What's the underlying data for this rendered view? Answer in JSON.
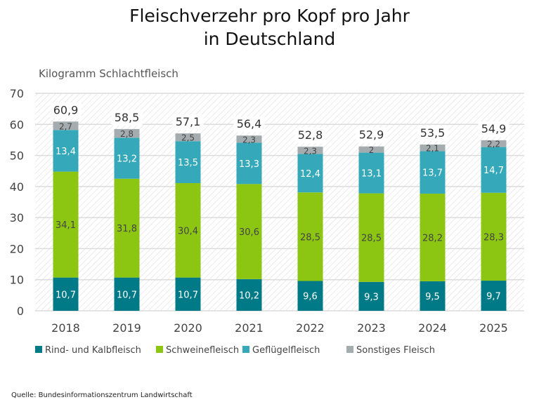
{
  "chart_data": {
    "type": "bar",
    "stacked": true,
    "title": "Fleischverzehr pro Kopf pro Jahr in Deutschland",
    "title_lines": [
      "Fleischverzehr pro Kopf pro Jahr",
      "in Deutschland"
    ],
    "ylabel": "Kilogramm Schlachtfleisch",
    "ylim": [
      0,
      70
    ],
    "yticks": [
      0,
      10,
      20,
      30,
      40,
      50,
      60,
      70
    ],
    "grid": true,
    "legend_position": "bottom",
    "categories": [
      "2018",
      "2019",
      "2020",
      "2021",
      "2022",
      "2023",
      "2024",
      "2025"
    ],
    "series": [
      {
        "name": "Rind- und Kalbfleisch",
        "color": "#007a87",
        "label_color": "#ffffff",
        "values": [
          10.7,
          10.7,
          10.7,
          10.2,
          9.6,
          9.3,
          9.5,
          9.7
        ],
        "labels": [
          "10,7",
          "10,7",
          "10,7",
          "10,2",
          "9,6",
          "9,3",
          "9,5",
          "9,7"
        ]
      },
      {
        "name": "Schweinefleisch",
        "color": "#8dc612",
        "label_color": "#444444",
        "values": [
          34.1,
          31.8,
          30.4,
          30.6,
          28.5,
          28.5,
          28.2,
          28.3
        ],
        "labels": [
          "34,1",
          "31,8",
          "30,4",
          "30,6",
          "28,5",
          "28,5",
          "28,2",
          "28,3"
        ]
      },
      {
        "name": "Geflügelfleisch",
        "color": "#35a9b9",
        "label_color": "#ffffff",
        "values": [
          13.4,
          13.2,
          13.5,
          13.3,
          12.4,
          13.1,
          13.7,
          14.7
        ],
        "labels": [
          "13,4",
          "13,2",
          "13,5",
          "13,3",
          "12,4",
          "13,1",
          "13,7",
          "14,7"
        ]
      },
      {
        "name": "Sonstiges Fleisch",
        "color": "#a4acaf",
        "label_color": "#444444",
        "values": [
          2.7,
          2.8,
          2.5,
          2.3,
          2.3,
          2,
          2.1,
          2.2
        ],
        "labels": [
          "2,7",
          "2,8",
          "2,5",
          "2,3",
          "2,3",
          "2",
          "2,1",
          "2,2"
        ]
      }
    ],
    "totals": [
      60.9,
      58.5,
      57.1,
      56.4,
      52.8,
      52.9,
      53.5,
      54.9
    ],
    "total_labels": [
      "60,9",
      "58,5",
      "57,1",
      "56,4",
      "52,8",
      "52,9",
      "53,5",
      "54,9"
    ]
  },
  "source": "Quelle: Bundesinformationszentrum Landwirtschaft"
}
